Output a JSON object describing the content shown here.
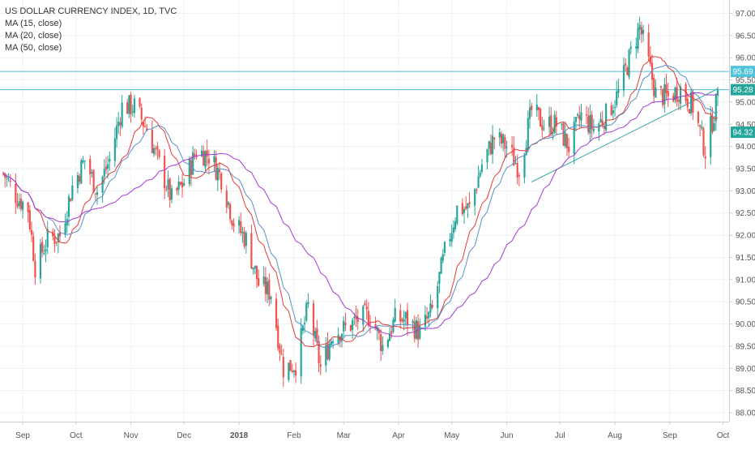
{
  "header": {
    "title": "US DOLLAR CURRENCY INDEX, 1D, TVC",
    "indicators": [
      "MA (15, close)",
      "MA (20, close)",
      "MA (50, close)"
    ]
  },
  "colors": {
    "up": "#26a69a",
    "down": "#ef5350",
    "ma15": "#e53935",
    "ma20": "#5b8ec9",
    "ma50": "#a638d6",
    "hline": "#4fc3d9",
    "trend": "#26a69a",
    "axis_text": "#555555",
    "grid": "#eef1f5"
  },
  "price_tags": [
    {
      "label": "95.69",
      "value": 95.69,
      "color": "#4fc3d9"
    },
    {
      "label": "95.28",
      "value": 95.28,
      "color": "#26a69a"
    },
    {
      "label": "94.32",
      "value": 94.32,
      "color": "#26a69a"
    }
  ],
  "chart_data": {
    "type": "candlestick",
    "title": "US DOLLAR CURRENCY INDEX, 1D, TVC",
    "ylim": [
      87.8,
      97.3
    ],
    "y_ticks": [
      "88.00",
      "88.50",
      "89.00",
      "89.50",
      "90.00",
      "90.50",
      "91.00",
      "91.50",
      "92.00",
      "92.50",
      "93.00",
      "93.50",
      "94.00",
      "94.50",
      "95.00",
      "95.50",
      "96.00",
      "96.50",
      "97.00"
    ],
    "x_labels": [
      {
        "label": "Sep",
        "date": "2017-09-01"
      },
      {
        "label": "Oct",
        "date": "2017-10-01"
      },
      {
        "label": "Nov",
        "date": "2017-11-01"
      },
      {
        "label": "Dec",
        "date": "2017-12-01"
      },
      {
        "label": "2018",
        "date": "2018-01-01",
        "bold": true
      },
      {
        "label": "Feb",
        "date": "2018-02-01"
      },
      {
        "label": "Mar",
        "date": "2018-03-01"
      },
      {
        "label": "Apr",
        "date": "2018-04-01"
      },
      {
        "label": "May",
        "date": "2018-05-01"
      },
      {
        "label": "Jun",
        "date": "2018-06-01"
      },
      {
        "label": "Jul",
        "date": "2018-07-01"
      },
      {
        "label": "Aug",
        "date": "2018-08-01"
      },
      {
        "label": "Sep",
        "date": "2018-09-01"
      },
      {
        "label": "Oct",
        "date": "2018-10-01"
      }
    ],
    "date_range": [
      "2017-08-21",
      "2018-09-28"
    ],
    "close_anchors": [
      [
        "2017-08-21",
        93.4
      ],
      [
        "2017-08-28",
        92.9
      ],
      [
        "2017-09-04",
        92.6
      ],
      [
        "2017-09-08",
        91.3
      ],
      [
        "2017-09-15",
        91.9
      ],
      [
        "2017-09-22",
        92.0
      ],
      [
        "2017-09-29",
        93.1
      ],
      [
        "2017-10-06",
        93.7
      ],
      [
        "2017-10-13",
        93.0
      ],
      [
        "2017-10-20",
        93.7
      ],
      [
        "2017-10-27",
        94.9
      ],
      [
        "2017-11-03",
        94.9
      ],
      [
        "2017-11-10",
        94.4
      ],
      [
        "2017-11-17",
        93.6
      ],
      [
        "2017-11-24",
        92.8
      ],
      [
        "2017-12-01",
        93.2
      ],
      [
        "2017-12-08",
        93.9
      ],
      [
        "2017-12-15",
        93.8
      ],
      [
        "2017-12-22",
        93.3
      ],
      [
        "2017-12-29",
        92.3
      ],
      [
        "2018-01-05",
        91.9
      ],
      [
        "2018-01-12",
        90.9
      ],
      [
        "2018-01-19",
        90.7
      ],
      [
        "2018-01-26",
        89.0
      ],
      [
        "2018-02-02",
        89.1
      ],
      [
        "2018-02-09",
        90.4
      ],
      [
        "2018-02-16",
        89.0
      ],
      [
        "2018-02-23",
        89.8
      ],
      [
        "2018-03-02",
        89.9
      ],
      [
        "2018-03-09",
        90.1
      ],
      [
        "2018-03-16",
        90.2
      ],
      [
        "2018-03-23",
        89.5
      ],
      [
        "2018-03-30",
        90.1
      ],
      [
        "2018-04-06",
        90.1
      ],
      [
        "2018-04-13",
        89.8
      ],
      [
        "2018-04-20",
        90.3
      ],
      [
        "2018-04-27",
        91.6
      ],
      [
        "2018-05-04",
        92.6
      ],
      [
        "2018-05-11",
        92.6
      ],
      [
        "2018-05-18",
        93.6
      ],
      [
        "2018-05-25",
        94.2
      ],
      [
        "2018-06-01",
        94.0
      ],
      [
        "2018-06-08",
        93.5
      ],
      [
        "2018-06-15",
        94.8
      ],
      [
        "2018-06-22",
        94.5
      ],
      [
        "2018-06-29",
        94.5
      ],
      [
        "2018-07-06",
        94.0
      ],
      [
        "2018-07-13",
        94.7
      ],
      [
        "2018-07-20",
        94.4
      ],
      [
        "2018-07-27",
        94.7
      ],
      [
        "2018-08-03",
        95.2
      ],
      [
        "2018-08-10",
        96.1
      ],
      [
        "2018-08-15",
        96.7
      ],
      [
        "2018-08-24",
        95.2
      ],
      [
        "2018-08-31",
        95.1
      ],
      [
        "2018-09-07",
        95.3
      ],
      [
        "2018-09-14",
        94.9
      ],
      [
        "2018-09-21",
        93.9
      ],
      [
        "2018-09-28",
        95.1
      ]
    ],
    "series": [
      {
        "name": "MA (15, close)",
        "period": 15
      },
      {
        "name": "MA (20, close)",
        "period": 20
      },
      {
        "name": "MA (50, close)",
        "period": 50
      }
    ],
    "horizontal_lines": [
      95.69,
      95.28
    ],
    "trendline": {
      "from": [
        "2018-06-15",
        93.2
      ],
      "to": [
        "2018-09-28",
        95.3
      ]
    },
    "grid": true,
    "legend_position": "top-left"
  }
}
